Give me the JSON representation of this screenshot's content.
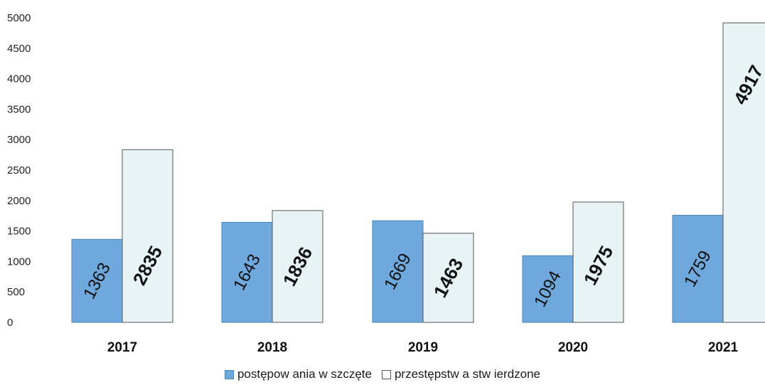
{
  "chart_data": {
    "type": "bar",
    "categories": [
      "2017",
      "2018",
      "2019",
      "2020",
      "2021"
    ],
    "series": [
      {
        "name": "postępow ania w szczęte",
        "color": "#6fa8dc",
        "values": [
          1363,
          1643,
          1669,
          1094,
          1759
        ]
      },
      {
        "name": "przestępstw a stw ierdzone",
        "color": "#e8f3f6",
        "values": [
          2835,
          1836,
          1463,
          1975,
          4917
        ]
      }
    ],
    "yticks": [
      "0",
      "500",
      "1000",
      "1500",
      "2000",
      "2500",
      "3000",
      "3500",
      "4000",
      "4500",
      "5000"
    ],
    "ylim": [
      0,
      5000
    ],
    "grid": false,
    "legend": "bottom",
    "title": "",
    "xlabel": "",
    "ylabel": ""
  }
}
